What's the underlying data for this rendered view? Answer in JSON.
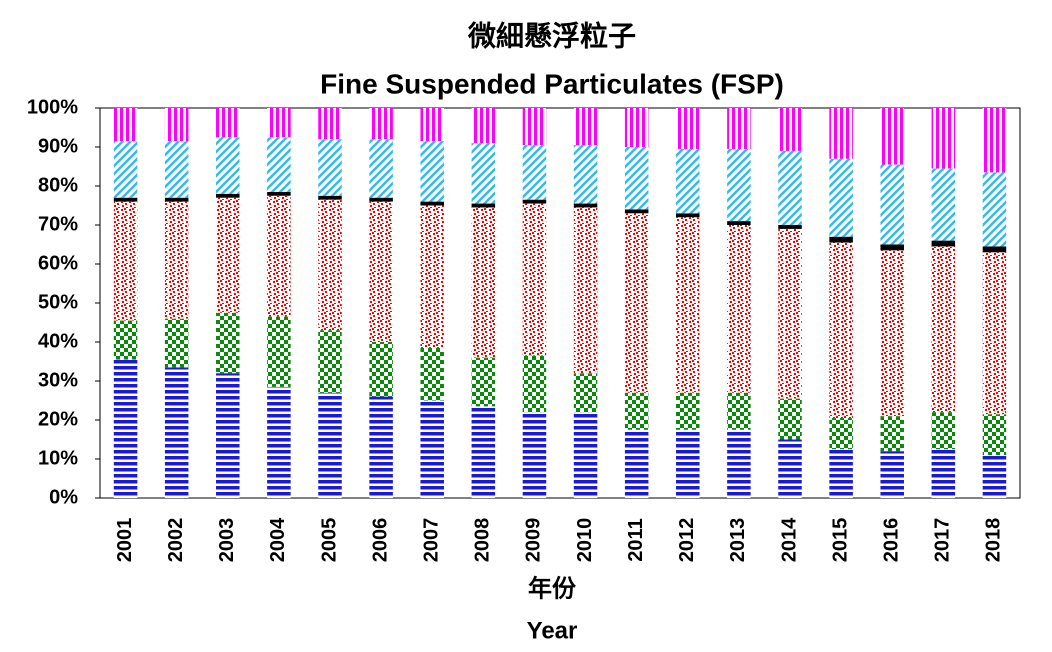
{
  "chart_data": {
    "type": "bar",
    "stacked": true,
    "title": "微細懸浮粒子",
    "subtitle": "Fine Suspended Particulates (FSP)",
    "xlabel": "年份",
    "xlabel_en": "Year",
    "categories": [
      "2001",
      "2002",
      "2003",
      "2004",
      "2005",
      "2006",
      "2007",
      "2008",
      "2009",
      "2010",
      "2011",
      "2012",
      "2013",
      "2014",
      "2015",
      "2016",
      "2017",
      "2018"
    ],
    "series": [
      {
        "color": "#1a1ad6",
        "pattern": "horizontal",
        "values": [
          35.5,
          33.5,
          32,
          28.5,
          27,
          26,
          25,
          23.5,
          22,
          22,
          17.5,
          17.5,
          17.5,
          15,
          12.5,
          12,
          12.5,
          11
        ]
      },
      {
        "color": "#0a8a0a",
        "pattern": "checker",
        "values": [
          10,
          12.5,
          15.5,
          18,
          16,
          14,
          13.5,
          12.5,
          14.5,
          10,
          9.5,
          9.5,
          9.5,
          10.5,
          8,
          9,
          9.5,
          10.5
        ]
      },
      {
        "color": "#ff0000",
        "pattern": "dots",
        "values": [
          30.5,
          30,
          29.5,
          31,
          33.5,
          36,
          36.5,
          38.5,
          39,
          42.5,
          46,
          45,
          43,
          43.5,
          45,
          42.5,
          42.5,
          41.5
        ]
      },
      {
        "color": "#000000",
        "pattern": "solid",
        "values": [
          1,
          1,
          1,
          1,
          1,
          1,
          1,
          1,
          1,
          1,
          1,
          1,
          1,
          1,
          1.5,
          1.5,
          1.5,
          1.5
        ]
      },
      {
        "color": "#33bbee",
        "pattern": "diagonal",
        "values": [
          14.5,
          14.5,
          14.5,
          14,
          14.5,
          15,
          15.5,
          15.5,
          14,
          15,
          16,
          16.5,
          18.5,
          19,
          20,
          20.5,
          18.5,
          19
        ]
      },
      {
        "color": "#ff00ff",
        "pattern": "vertical",
        "values": [
          8.5,
          8.5,
          7.5,
          7.5,
          8,
          8,
          8.5,
          9,
          9.5,
          9.5,
          10,
          10.5,
          10.5,
          11,
          13,
          14.5,
          15.5,
          16.5
        ]
      }
    ],
    "ylim": [
      0,
      100
    ],
    "yticks": [
      {
        "value": 0,
        "label": "0%"
      },
      {
        "value": 10,
        "label": "10%"
      },
      {
        "value": 20,
        "label": "20%"
      },
      {
        "value": 30,
        "label": "30%"
      },
      {
        "value": 40,
        "label": "40%"
      },
      {
        "value": 50,
        "label": "50%"
      },
      {
        "value": 60,
        "label": "60%"
      },
      {
        "value": 70,
        "label": "70%"
      },
      {
        "value": 80,
        "label": "80%"
      },
      {
        "value": 90,
        "label": "90%"
      },
      {
        "value": 100,
        "label": "100%"
      }
    ]
  }
}
